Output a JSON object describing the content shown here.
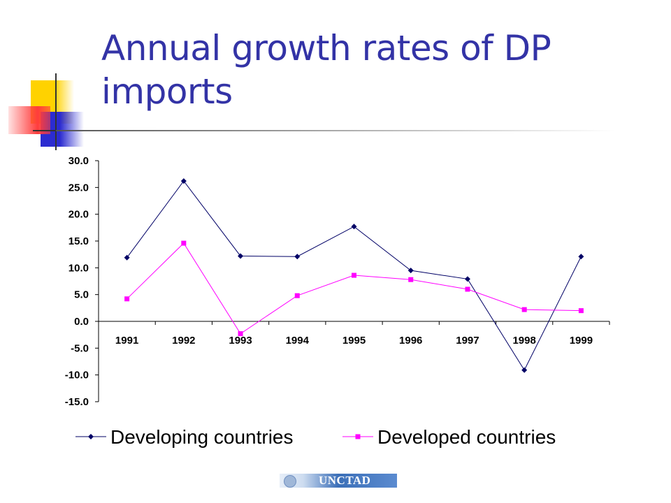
{
  "slide": {
    "title": "Annual growth rates of DP imports",
    "footer_logo_text": "UNCTAD"
  },
  "colors": {
    "title": "#3333a6",
    "developing": "#000066",
    "developed": "#ff00ff"
  },
  "chart_data": {
    "type": "line",
    "categories": [
      "1991",
      "1992",
      "1993",
      "1994",
      "1995",
      "1996",
      "1997",
      "1998",
      "1999"
    ],
    "series": [
      {
        "name": "Developing countries",
        "color": "#000066",
        "marker": "diamond",
        "values": [
          11.9,
          26.2,
          12.2,
          12.1,
          17.7,
          9.5,
          7.9,
          -9.1,
          12.1
        ]
      },
      {
        "name": "Developed countries",
        "color": "#ff00ff",
        "marker": "square",
        "values": [
          4.2,
          14.6,
          -2.3,
          4.8,
          8.6,
          7.8,
          6.0,
          2.2,
          2.0
        ]
      }
    ],
    "ylim": [
      -15,
      30
    ],
    "yticks": [
      "30.0",
      "25.0",
      "20.0",
      "15.0",
      "10.0",
      "5.0",
      "0.0",
      "-5.0",
      "-10.0",
      "-15.0"
    ],
    "ytick_values": [
      30,
      25,
      20,
      15,
      10,
      5,
      0,
      -5,
      -10,
      -15
    ],
    "grid": false,
    "legend_position": "bottom"
  }
}
